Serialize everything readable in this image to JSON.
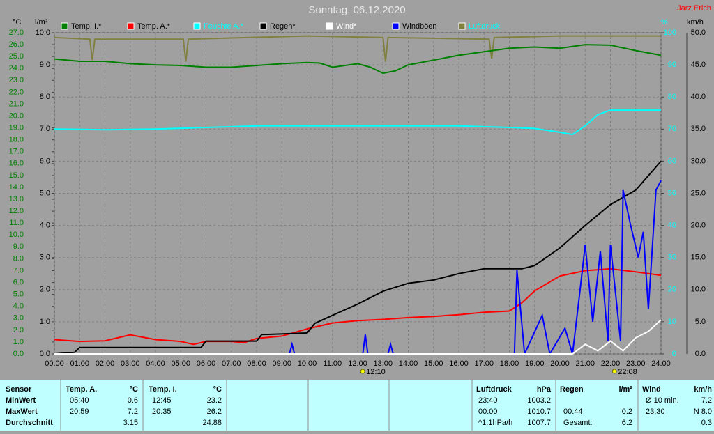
{
  "chart_data": {
    "type": "line",
    "title": "Sonntag, 06.12.2020",
    "author": "Jarz Erich",
    "y_unit": "°C",
    "y2_unit": "l/m²",
    "y3_unit": "%",
    "y4_unit": "km/h",
    "xlim": [
      0,
      24
    ],
    "xticks": [
      {
        "value": 0,
        "label": "00:00"
      },
      {
        "value": 1,
        "label": "01:00"
      },
      {
        "value": 2,
        "label": "02:00"
      },
      {
        "value": 3,
        "label": "03:00"
      },
      {
        "value": 4,
        "label": "04:00"
      },
      {
        "value": 5,
        "label": "05:00"
      },
      {
        "value": 6,
        "label": "06:00"
      },
      {
        "value": 7,
        "label": "07:00"
      },
      {
        "value": 8,
        "label": "08:00"
      },
      {
        "value": 9,
        "label": "09:00"
      },
      {
        "value": 10,
        "label": "10:00"
      },
      {
        "value": 11,
        "label": "11:00"
      },
      {
        "value": 12,
        "label": "12:00"
      },
      {
        "value": 13,
        "label": "13:00"
      },
      {
        "value": 14,
        "label": "14:00"
      },
      {
        "value": 15,
        "label": "15:00"
      },
      {
        "value": 16,
        "label": "16:00"
      },
      {
        "value": 17,
        "label": "17:00"
      },
      {
        "value": 18,
        "label": "18:00"
      },
      {
        "value": 19,
        "label": "19:00"
      },
      {
        "value": 20,
        "label": "20:00"
      },
      {
        "value": 21,
        "label": "21:00"
      },
      {
        "value": 22,
        "label": "22:00"
      },
      {
        "value": 23,
        "label": "23:00"
      },
      {
        "value": 24,
        "label": "24:00"
      }
    ],
    "ylim": [
      0,
      27
    ],
    "yticks": [
      {
        "value": 0,
        "label": "0.0"
      },
      {
        "value": 1,
        "label": "1.0"
      },
      {
        "value": 2,
        "label": "2.0"
      },
      {
        "value": 3,
        "label": "3.0"
      },
      {
        "value": 4,
        "label": "4.0"
      },
      {
        "value": 5,
        "label": "5.0"
      },
      {
        "value": 6,
        "label": "6.0"
      },
      {
        "value": 7,
        "label": "7.0"
      },
      {
        "value": 8,
        "label": "8.0"
      },
      {
        "value": 9,
        "label": "9.0"
      },
      {
        "value": 10,
        "label": "10.0"
      },
      {
        "value": 11,
        "label": "11.0"
      },
      {
        "value": 12,
        "label": "12.0"
      },
      {
        "value": 13,
        "label": "13.0"
      },
      {
        "value": 14,
        "label": "14.0"
      },
      {
        "value": 15,
        "label": "15.0"
      },
      {
        "value": 16,
        "label": "16.0"
      },
      {
        "value": 17,
        "label": "17.0"
      },
      {
        "value": 18,
        "label": "18.0"
      },
      {
        "value": 19,
        "label": "19.0"
      },
      {
        "value": 20,
        "label": "20.0"
      },
      {
        "value": 21,
        "label": "21.0"
      },
      {
        "value": 22,
        "label": "22.0"
      },
      {
        "value": 23,
        "label": "23.0"
      },
      {
        "value": 24,
        "label": "24.0"
      },
      {
        "value": 25,
        "label": "25.0"
      },
      {
        "value": 26,
        "label": "26.0"
      },
      {
        "value": 27,
        "label": "27.0"
      }
    ],
    "y2lim": [
      0,
      10
    ],
    "y2ticks": [
      {
        "value": 0,
        "label": "0.0"
      },
      {
        "value": 1,
        "label": "1.0"
      },
      {
        "value": 2,
        "label": "2.0"
      },
      {
        "value": 3,
        "label": "3.0"
      },
      {
        "value": 4,
        "label": "4.0"
      },
      {
        "value": 5,
        "label": "5.0"
      },
      {
        "value": 6,
        "label": "6.0"
      },
      {
        "value": 7,
        "label": "7.0"
      },
      {
        "value": 8,
        "label": "8.0"
      },
      {
        "value": 9,
        "label": "9.0"
      },
      {
        "value": 10,
        "label": "10.0"
      }
    ],
    "y3lim": [
      0,
      100
    ],
    "y3ticks": [
      0,
      10,
      20,
      30,
      40,
      50,
      60,
      70,
      80,
      90,
      100
    ],
    "y4lim": [
      0,
      50
    ],
    "y4ticks": [
      {
        "value": 0,
        "label": "0.0"
      },
      {
        "value": 5,
        "label": "5.0"
      },
      {
        "value": 10,
        "label": "10.0"
      },
      {
        "value": 15,
        "label": "15.0"
      },
      {
        "value": 20,
        "label": "20.0"
      },
      {
        "value": 25,
        "label": "25.0"
      },
      {
        "value": 30,
        "label": "30.0"
      },
      {
        "value": 35,
        "label": "35.0"
      },
      {
        "value": 40,
        "label": "40.0"
      },
      {
        "value": 45,
        "label": "45.0"
      },
      {
        "value": 50,
        "label": "50.0"
      }
    ],
    "grid": true,
    "series": [
      {
        "name": "Temp. I.*",
        "color": "#008000",
        "axis": "y",
        "x": [
          0,
          1,
          2,
          3,
          4,
          5,
          6,
          7,
          8,
          9,
          10,
          10.5,
          11,
          12,
          12.5,
          13,
          13.5,
          14,
          15,
          16,
          17,
          18,
          19,
          20,
          21,
          22,
          23,
          24
        ],
        "values": [
          24.8,
          24.6,
          24.6,
          24.4,
          24.3,
          24.25,
          24.1,
          24.1,
          24.25,
          24.4,
          24.5,
          24.45,
          24.1,
          24.4,
          24.1,
          23.6,
          23.8,
          24.3,
          24.7,
          25.1,
          25.4,
          25.7,
          25.8,
          25.7,
          26.0,
          25.95,
          25.5,
          25.1
        ]
      },
      {
        "name": "Temp. A.*",
        "color": "#ff0000",
        "axis": "y",
        "x": [
          0,
          1,
          2,
          3,
          4,
          5,
          5.5,
          6,
          7,
          7.5,
          8,
          9,
          10,
          11,
          12,
          13,
          14,
          15,
          16,
          17,
          18,
          18.5,
          19,
          20,
          21,
          22,
          23,
          24
        ],
        "values": [
          1.2,
          1.05,
          1.1,
          1.6,
          1.2,
          1.05,
          0.8,
          1.05,
          1.05,
          0.95,
          1.3,
          1.5,
          2.1,
          2.6,
          2.8,
          2.9,
          3.05,
          3.15,
          3.3,
          3.5,
          3.6,
          4.3,
          5.3,
          6.55,
          7.0,
          7.15,
          6.9,
          6.6
        ]
      },
      {
        "name": "Feuchte A.*",
        "color": "#00ffff",
        "axis": "y3",
        "legend_text_color": "#00ffff",
        "x": [
          0,
          2,
          4,
          6,
          8,
          10,
          12,
          14,
          16,
          18,
          19,
          20,
          20.5,
          21,
          21.5,
          22,
          23,
          24
        ],
        "values": [
          70,
          69.8,
          70,
          70.5,
          71,
          71,
          71,
          71,
          71,
          70.5,
          70.2,
          69,
          68.3,
          71,
          74.5,
          75.9,
          75.9,
          75.9
        ]
      },
      {
        "name": "Regen*",
        "color": "#000000",
        "axis": "y2",
        "x": [
          0,
          0.8,
          1,
          5.8,
          6,
          8,
          8.2,
          10,
          10.3,
          11,
          12,
          13,
          14,
          15,
          16,
          17,
          18,
          18.5,
          19,
          20,
          21,
          22,
          23,
          24
        ],
        "values": [
          0,
          0.05,
          0.2,
          0.2,
          0.4,
          0.4,
          0.6,
          0.65,
          0.95,
          1.2,
          1.55,
          1.95,
          2.2,
          2.3,
          2.5,
          2.65,
          2.65,
          2.65,
          2.75,
          3.3,
          4.0,
          4.65,
          5.1,
          6.0
        ]
      },
      {
        "name": "Wind*",
        "color": "#ffffff",
        "axis": "y4",
        "legend_text_color": "#ffffff",
        "x": [
          0,
          20.5,
          21,
          21.5,
          22,
          22.5,
          23,
          23.5,
          24
        ],
        "values": [
          0,
          0,
          1.5,
          0.5,
          2,
          0.5,
          2.5,
          3.5,
          5.3
        ]
      },
      {
        "name": "Windböen",
        "color": "#0000ff",
        "axis": "y4",
        "x": [
          0,
          9.3,
          9.4,
          9.5,
          12.2,
          12.3,
          12.4,
          13.2,
          13.3,
          13.4,
          18.2,
          18.3,
          18.6,
          19.3,
          19.6,
          20.2,
          20.5,
          20.8,
          21.0,
          21.3,
          21.6,
          21.9,
          22.0,
          22.4,
          22.5,
          22.8,
          23.1,
          23.3,
          23.5,
          23.8,
          24
        ],
        "values": [
          0,
          0,
          1.5,
          0,
          0,
          3,
          0,
          0,
          1.5,
          0,
          0,
          13,
          0,
          6,
          0,
          4,
          0,
          10,
          17,
          5,
          16,
          2,
          17,
          2,
          25.5,
          20,
          15,
          19,
          7,
          25.5,
          27
        ]
      },
      {
        "name": "Luftdruck",
        "color": "#808040",
        "axis": "y3",
        "legend_text_color": "#00ffff",
        "x": [
          0,
          1.4,
          1.5,
          1.6,
          5.1,
          5.2,
          5.3,
          10,
          13.0,
          13.1,
          13.2,
          17.2,
          17.3,
          17.4,
          20,
          24
        ],
        "values": [
          98.5,
          98,
          91.5,
          98,
          98,
          91,
          98,
          99,
          98.5,
          91,
          98.5,
          98,
          92,
          98.5,
          99,
          99
        ]
      }
    ],
    "annotations": [
      {
        "x": 12.17,
        "label": "12:10"
      },
      {
        "x": 22.13,
        "label": "22:08"
      }
    ]
  },
  "table": {
    "header": [
      "Sensor",
      "Temp. A.",
      "°C",
      "Temp. I.",
      "°C",
      "Luftdruck",
      "hPa",
      "Regen",
      "l/m²",
      "Wind",
      "km/h"
    ],
    "rows": [
      {
        "label": "MinWert",
        "cells": [
          "05:40",
          "0.6",
          "12:45",
          "23.2",
          "23:40",
          "1003.2",
          null,
          null,
          "Ø 10 min.",
          "7.2"
        ]
      },
      {
        "label": "MaxWert",
        "cells": [
          "20:59",
          "7.2",
          "20:35",
          "26.2",
          "00:00",
          "1010.7",
          "00:44",
          "0.2",
          "23:30",
          "N 8.0"
        ]
      },
      {
        "label": "Durchschnitt",
        "cells": [
          null,
          "3.15",
          null,
          "24.88",
          "^1.1hPa/h",
          "1007.7",
          "Gesamt:",
          "6.2",
          null,
          "0.3"
        ]
      }
    ]
  }
}
